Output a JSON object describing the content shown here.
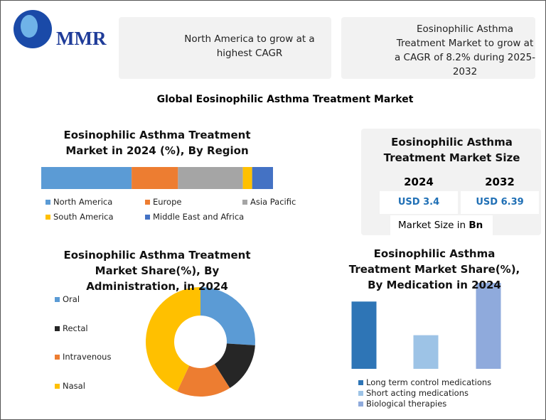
{
  "logo": "MMR",
  "highlights": [
    "North America to grow at a highest CAGR",
    "Eosinophilic Asthma Treatment Market to grow at a CAGR of 8.2% during 2025-2032"
  ],
  "title": "Global Eosinophilic Asthma Treatment Market",
  "market_size": {
    "title": "Eosinophilic Asthma Treatment Market Size",
    "years": [
      "2024",
      "2032"
    ],
    "values": [
      "USD 3.4",
      "USD 6.39"
    ],
    "note": "Market Size in",
    "unit": "Bn"
  },
  "chart_data": [
    {
      "type": "stacked-bar",
      "title": "Eosinophilic Asthma Treatment Market in 2024 (%), By Region",
      "series": [
        {
          "name": "North America",
          "color": "#5b9bd5",
          "values": [
            39
          ]
        },
        {
          "name": "Europe",
          "color": "#ed7d31",
          "values": [
            20
          ]
        },
        {
          "name": "Asia Pacific",
          "color": "#a5a5a5",
          "values": [
            28
          ]
        },
        {
          "name": "South America",
          "color": "#ffc000",
          "values": [
            4
          ]
        },
        {
          "name": "Middle East and Africa",
          "color": "#4472c4",
          "values": [
            9
          ]
        }
      ]
    },
    {
      "type": "donut",
      "title": "Eosinophilic Asthma Treatment Market Share(%), By Administration, in 2024",
      "categories": [
        "Oral",
        "Rectal",
        "Intravenous",
        "Nasal"
      ],
      "values": [
        26,
        15,
        16,
        43
      ],
      "colors": [
        "#5b9bd5",
        "#262626",
        "#ed7d31",
        "#ffc000"
      ]
    },
    {
      "type": "bar",
      "title": "Eosinophilic Asthma Treatment Market Share(%), By Medication in 2024",
      "categories": [
        "Long term control medications",
        "Short acting medications",
        "Biological therapies"
      ],
      "values": [
        36,
        18,
        46
      ],
      "colors": [
        "#2e75b6",
        "#9dc3e6",
        "#8faadc"
      ]
    }
  ]
}
